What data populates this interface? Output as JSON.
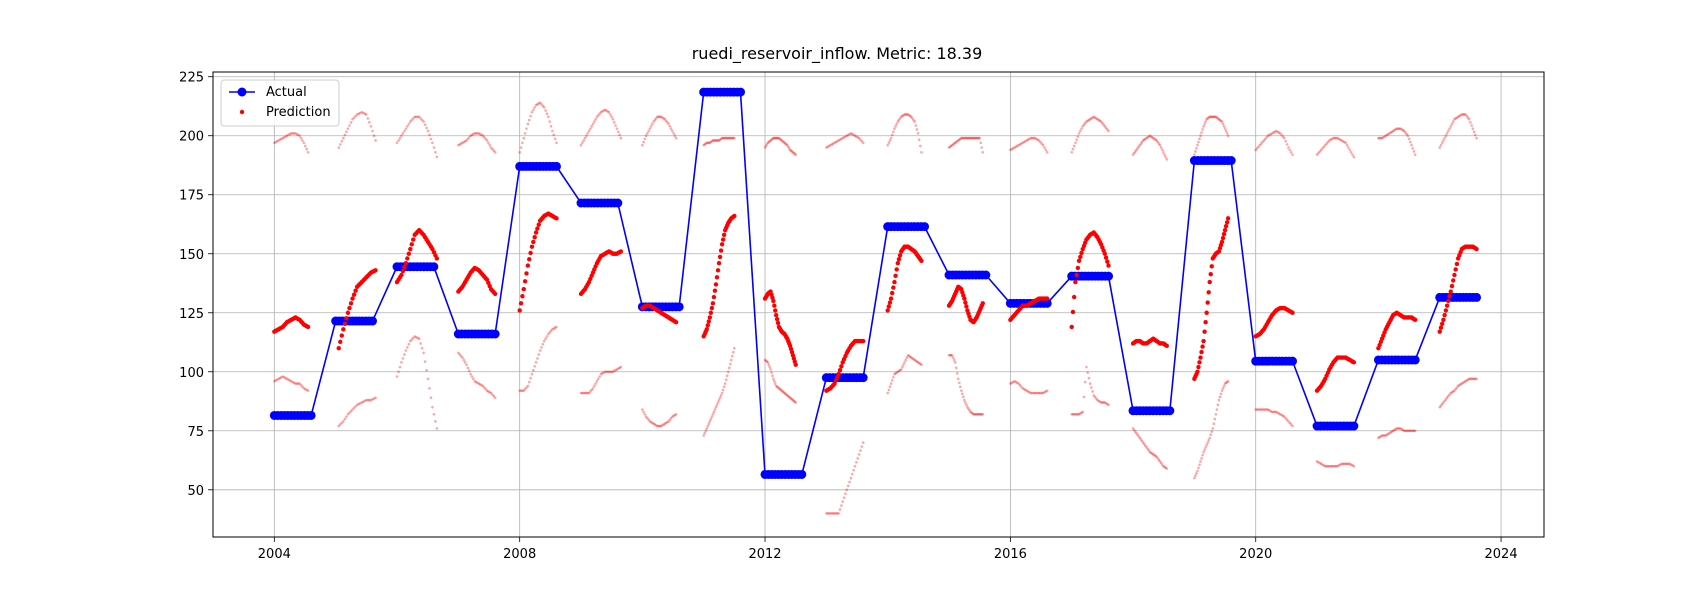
{
  "chart_data": {
    "type": "line",
    "title": "ruedi_reservoir_inflow. Metric: 18.39",
    "xlabel": "",
    "ylabel": "",
    "xlim": [
      2003.0,
      2024.7
    ],
    "ylim": [
      30,
      227
    ],
    "x_ticks": [
      "2004",
      "2008",
      "2012",
      "2016",
      "2020",
      "2024"
    ],
    "y_ticks": [
      "50",
      "75",
      "100",
      "125",
      "150",
      "175",
      "200",
      "225"
    ],
    "grid": true,
    "legend": {
      "position": "top-left",
      "entries": [
        "Actual",
        "Prediction"
      ]
    },
    "colors": {
      "actual": "#0000ff",
      "prediction": "#ff0000"
    },
    "actual": {
      "name": "Actual",
      "segments": [
        {
          "start": 2004.0,
          "end": 2004.6,
          "value": 81.5
        },
        {
          "start": 2005.0,
          "end": 2005.6,
          "value": 121.5
        },
        {
          "start": 2006.0,
          "end": 2006.6,
          "value": 144.5
        },
        {
          "start": 2007.0,
          "end": 2007.6,
          "value": 116.0
        },
        {
          "start": 2008.0,
          "end": 2008.6,
          "value": 187.0
        },
        {
          "start": 2009.0,
          "end": 2009.6,
          "value": 171.5
        },
        {
          "start": 2010.0,
          "end": 2010.6,
          "value": 127.5
        },
        {
          "start": 2011.0,
          "end": 2011.6,
          "value": 218.5
        },
        {
          "start": 2012.0,
          "end": 2012.6,
          "value": 56.5
        },
        {
          "start": 2013.0,
          "end": 2013.6,
          "value": 97.5
        },
        {
          "start": 2014.0,
          "end": 2014.6,
          "value": 161.5
        },
        {
          "start": 2015.0,
          "end": 2015.6,
          "value": 141.0
        },
        {
          "start": 2016.0,
          "end": 2016.6,
          "value": 129.0
        },
        {
          "start": 2017.0,
          "end": 2017.6,
          "value": 140.5
        },
        {
          "start": 2018.0,
          "end": 2018.6,
          "value": 83.5
        },
        {
          "start": 2019.0,
          "end": 2019.6,
          "value": 189.5
        },
        {
          "start": 2020.0,
          "end": 2020.6,
          "value": 104.5
        },
        {
          "start": 2021.0,
          "end": 2021.6,
          "value": 77.0
        },
        {
          "start": 2022.0,
          "end": 2022.6,
          "value": 105.0
        },
        {
          "start": 2023.0,
          "end": 2023.6,
          "value": 131.5
        }
      ]
    },
    "prediction": {
      "name": "Prediction",
      "years": [
        {
          "start": 2004.0,
          "end": 2004.55,
          "mid": [
            117,
            118,
            119,
            121,
            122,
            123,
            122,
            120,
            119
          ],
          "upper": [
            197,
            198,
            199,
            200,
            201,
            201,
            200,
            197,
            193
          ],
          "lower": [
            96,
            97,
            98,
            97,
            96,
            95,
            95,
            93,
            92
          ]
        },
        {
          "start": 2005.05,
          "end": 2005.65,
          "mid": [
            110,
            118,
            125,
            131,
            136,
            138,
            140,
            142,
            143
          ],
          "upper": [
            195,
            199,
            203,
            207,
            209,
            210,
            209,
            204,
            198
          ],
          "lower": [
            77,
            79,
            82,
            84,
            86,
            87,
            88,
            88,
            89
          ]
        },
        {
          "start": 2006.0,
          "end": 2006.65,
          "mid": [
            138,
            141,
            146,
            152,
            158,
            160,
            158,
            155,
            152,
            148
          ],
          "upper": [
            197,
            200,
            203,
            206,
            208,
            208,
            206,
            202,
            197,
            191
          ],
          "lower": [
            98,
            104,
            109,
            113,
            115,
            114,
            108,
            97,
            85,
            76
          ]
        },
        {
          "start": 2007.0,
          "end": 2007.6,
          "mid": [
            134,
            136,
            139,
            142,
            144,
            143,
            141,
            139,
            135,
            133
          ],
          "upper": [
            196,
            197,
            198,
            200,
            201,
            201,
            200,
            198,
            195,
            193
          ],
          "lower": [
            108,
            106,
            103,
            99,
            96,
            95,
            94,
            92,
            91,
            89
          ]
        },
        {
          "start": 2008.0,
          "end": 2008.6,
          "mid": [
            126,
            135,
            145,
            153,
            159,
            164,
            166,
            167,
            166,
            165
          ],
          "upper": [
            193,
            199,
            205,
            210,
            213,
            214,
            212,
            208,
            202,
            197
          ],
          "lower": [
            92,
            92,
            94,
            99,
            104,
            109,
            113,
            116,
            118,
            119
          ]
        },
        {
          "start": 2009.0,
          "end": 2009.65,
          "mid": [
            133,
            135,
            138,
            142,
            146,
            149,
            150,
            151,
            150,
            150,
            151
          ],
          "upper": [
            196,
            199,
            202,
            205,
            208,
            210,
            211,
            210,
            207,
            203,
            199
          ],
          "lower": [
            91,
            91,
            91,
            93,
            96,
            99,
            100,
            100,
            100,
            101,
            102
          ]
        },
        {
          "start": 2010.0,
          "end": 2010.55,
          "mid": [
            127,
            128,
            128,
            127,
            126,
            125,
            124,
            123,
            122,
            121
          ],
          "upper": [
            196,
            200,
            203,
            206,
            208,
            208,
            207,
            205,
            202,
            199
          ],
          "lower": [
            84,
            81,
            79,
            78,
            77,
            77,
            78,
            79,
            81,
            82
          ]
        },
        {
          "start": 2011.0,
          "end": 2011.5,
          "mid": [
            115,
            118,
            123,
            129,
            137,
            146,
            154,
            160,
            163,
            165,
            166
          ],
          "upper": [
            196,
            197,
            197,
            198,
            198,
            198,
            199,
            199,
            199,
            199,
            199
          ],
          "lower": [
            73,
            76,
            79,
            82,
            85,
            88,
            91,
            95,
            100,
            105,
            110
          ]
        },
        {
          "start": 2012.0,
          "end": 2012.5,
          "mid": [
            131,
            133,
            134,
            130,
            124,
            119,
            117,
            116,
            114,
            111,
            107,
            103
          ],
          "upper": [
            195,
            197,
            198,
            199,
            199,
            199,
            198,
            197,
            196,
            194,
            193,
            192
          ],
          "lower": [
            105,
            104,
            101,
            97,
            94,
            93,
            92,
            91,
            90,
            89,
            88,
            87
          ]
        },
        {
          "start": 2013.0,
          "end": 2013.6,
          "mid": [
            92,
            93,
            95,
            99,
            104,
            108,
            111,
            113,
            113,
            113
          ],
          "upper": [
            195,
            196,
            197,
            198,
            199,
            200,
            201,
            200,
            199,
            197
          ],
          "lower": [
            40,
            40,
            40,
            40,
            45,
            50,
            55,
            60,
            65,
            70
          ]
        },
        {
          "start": 2014.0,
          "end": 2014.55,
          "mid": [
            126,
            131,
            138,
            146,
            151,
            153,
            153,
            152,
            151,
            149,
            147
          ],
          "upper": [
            196,
            199,
            203,
            206,
            208,
            209,
            209,
            208,
            206,
            201,
            193
          ],
          "lower": [
            91,
            95,
            99,
            100,
            101,
            104,
            107,
            106,
            105,
            104,
            103
          ]
        },
        {
          "start": 2015.0,
          "end": 2015.55,
          "mid": [
            128,
            130,
            133,
            136,
            135,
            131,
            126,
            122,
            121,
            123,
            126,
            129
          ],
          "upper": [
            195,
            196,
            197,
            198,
            199,
            199,
            199,
            199,
            199,
            199,
            199,
            193
          ],
          "lower": [
            107,
            107,
            104,
            97,
            92,
            88,
            85,
            83,
            82,
            82,
            82,
            82
          ]
        },
        {
          "start": 2016.0,
          "end": 2016.6,
          "mid": [
            122,
            124,
            126,
            128,
            128,
            129,
            130,
            131,
            131,
            131
          ],
          "upper": [
            194,
            195,
            196,
            197,
            198,
            199,
            199,
            198,
            196,
            193
          ],
          "lower": [
            95,
            96,
            95,
            93,
            92,
            91,
            91,
            91,
            91,
            92
          ]
        },
        {
          "start": 2017.0,
          "end": 2017.6,
          "mid": [
            119,
            138,
            147,
            152,
            156,
            158,
            159,
            157,
            154,
            150,
            145
          ],
          "upper": [
            193,
            197,
            201,
            204,
            206,
            207,
            208,
            207,
            206,
            204,
            202
          ],
          "lower": [
            82,
            82,
            82,
            83,
            102,
            95,
            90,
            88,
            87,
            87,
            86
          ]
        },
        {
          "start": 2018.0,
          "end": 2018.55,
          "mid": [
            112,
            113,
            113,
            112,
            112,
            113,
            114,
            113,
            112,
            112,
            111
          ],
          "upper": [
            192,
            194,
            196,
            198,
            199,
            200,
            199,
            198,
            196,
            193,
            190
          ],
          "lower": [
            76,
            74,
            72,
            70,
            68,
            66,
            65,
            64,
            62,
            60,
            59
          ]
        },
        {
          "start": 2019.0,
          "end": 2019.55,
          "mid": [
            97,
            100,
            106,
            113,
            125,
            138,
            148,
            150,
            151,
            155,
            160,
            165
          ],
          "upper": [
            192,
            196,
            200,
            204,
            207,
            208,
            208,
            208,
            207,
            206,
            203,
            200
          ],
          "lower": [
            55,
            58,
            62,
            66,
            69,
            72,
            76,
            82,
            88,
            92,
            95,
            96
          ]
        },
        {
          "start": 2020.0,
          "end": 2020.6,
          "mid": [
            115,
            116,
            118,
            121,
            124,
            126,
            127,
            127,
            126,
            125
          ],
          "upper": [
            194,
            196,
            198,
            200,
            201,
            202,
            201,
            199,
            195,
            192
          ],
          "lower": [
            84,
            84,
            84,
            84,
            83,
            83,
            82,
            81,
            79,
            77
          ]
        },
        {
          "start": 2021.0,
          "end": 2021.6,
          "mid": [
            92,
            94,
            97,
            101,
            104,
            106,
            106,
            106,
            105,
            104
          ],
          "upper": [
            192,
            194,
            196,
            198,
            199,
            199,
            198,
            197,
            194,
            191
          ],
          "lower": [
            62,
            61,
            60,
            60,
            60,
            60,
            61,
            61,
            61,
            60
          ]
        },
        {
          "start": 2022.0,
          "end": 2022.6,
          "mid": [
            110,
            114,
            118,
            121,
            124,
            125,
            124,
            123,
            123,
            123,
            122
          ],
          "upper": [
            199,
            199,
            200,
            201,
            202,
            203,
            203,
            202,
            200,
            196,
            192
          ],
          "lower": [
            72,
            73,
            73,
            74,
            75,
            76,
            76,
            75,
            75,
            75,
            75
          ]
        },
        {
          "start": 2023.0,
          "end": 2023.6,
          "mid": [
            117,
            122,
            128,
            134,
            141,
            148,
            152,
            153,
            153,
            153,
            152
          ],
          "upper": [
            195,
            198,
            201,
            204,
            207,
            208,
            209,
            209,
            207,
            203,
            199
          ],
          "lower": [
            85,
            87,
            89,
            91,
            92,
            94,
            95,
            96,
            97,
            97,
            97
          ]
        }
      ]
    }
  }
}
